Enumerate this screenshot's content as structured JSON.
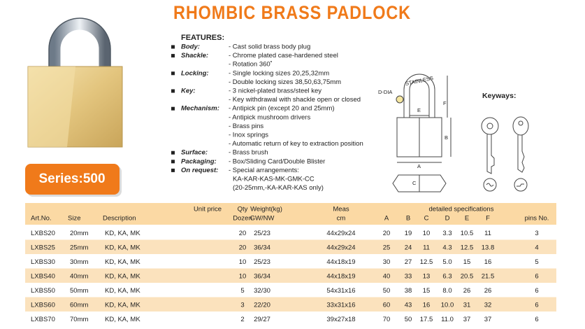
{
  "header": {
    "title": "RHOMBIC BRASS PADLOCK"
  },
  "series_badge": "Series:500",
  "features": {
    "heading": "FEATURES:",
    "items": [
      {
        "label": "Body:",
        "lines": [
          "- Cast solid brass body plug"
        ]
      },
      {
        "label": "Shackle:",
        "lines": [
          "- Chrome plated case-hardened steel",
          "- Rotation 360˚"
        ]
      },
      {
        "label": "Locking:",
        "lines": [
          "- Single locking sizes 20,25,32mm",
          "- Double locking sizes 38,50,63,75mm"
        ]
      },
      {
        "label": "Key:",
        "lines": [
          "- 3 nickel-plated brass/steel key",
          "- Key withdrawal with shackle open or closed"
        ]
      },
      {
        "label": "Mechanism:",
        "lines": [
          "- Antipick pin (except 20 and 25mm)",
          "- Antipick mushroom drivers",
          "- Brass pins",
          "- Inox springs",
          "- Automatic return of key to extraction position"
        ]
      },
      {
        "label": "Surface:",
        "lines": [
          "- Brass brush"
        ]
      },
      {
        "label": "Packaging:",
        "lines": [
          "- Box/Sliding Card/Double Blister"
        ]
      },
      {
        "label": "On request:",
        "lines": [
          "- Special arrangements:",
          "KA-KAR-KAS-MK-GMK-CC",
          "(20-25mm,-KA-KAR-KAS only)"
        ]
      }
    ]
  },
  "diagram": {
    "d_dia": "D-DIA",
    "stainless": "STAINLESS",
    "e": "E",
    "f": "F",
    "b": "B",
    "a": "A",
    "c": "C"
  },
  "keyways": {
    "title": "Keyways:"
  },
  "table": {
    "header_top": [
      "Unit price",
      "Qty",
      "Weight(kg)",
      "Meas",
      "detailed specifications"
    ],
    "header_bottom": [
      "Art.No.",
      "Size",
      "Description",
      "Dozen",
      "GW/NW",
      "cm",
      "A",
      "B",
      "C",
      "D",
      "E",
      "F",
      "pins No."
    ],
    "rows": [
      [
        "LXBS20",
        "20mm",
        "KD, KA, MK",
        "20",
        "25/23",
        "44x29x24",
        "20",
        "19",
        "10",
        "3.3",
        "10.5",
        "11",
        "3"
      ],
      [
        "LXBS25",
        "25mm",
        "KD, KA, MK",
        "20",
        "36/34",
        "44x29x24",
        "25",
        "24",
        "11",
        "4.3",
        "12.5",
        "13.8",
        "4"
      ],
      [
        "LXBS30",
        "30mm",
        "KD, KA, MK",
        "10",
        "25/23",
        "44x18x19",
        "30",
        "27",
        "12.5",
        "5.0",
        "15",
        "16",
        "5"
      ],
      [
        "LXBS40",
        "40mm",
        "KD, KA, MK",
        "10",
        "36/34",
        "44x18x19",
        "40",
        "33",
        "13",
        "6.3",
        "20.5",
        "21.5",
        "6"
      ],
      [
        "LXBS50",
        "50mm",
        "KD, KA, MK",
        "5",
        "32/30",
        "54x31x16",
        "50",
        "38",
        "15",
        "8.0",
        "26",
        "26",
        "6"
      ],
      [
        "LXBS60",
        "60mm",
        "KD, KA, MK",
        "3",
        "22/20",
        "33x31x16",
        "60",
        "43",
        "16",
        "10.0",
        "31",
        "32",
        "6"
      ],
      [
        "LXBS70",
        "70mm",
        "KD, KA, MK",
        "2",
        "29/27",
        "39x27x18",
        "70",
        "50",
        "17.5",
        "11.0",
        "37",
        "37",
        "6"
      ]
    ]
  }
}
